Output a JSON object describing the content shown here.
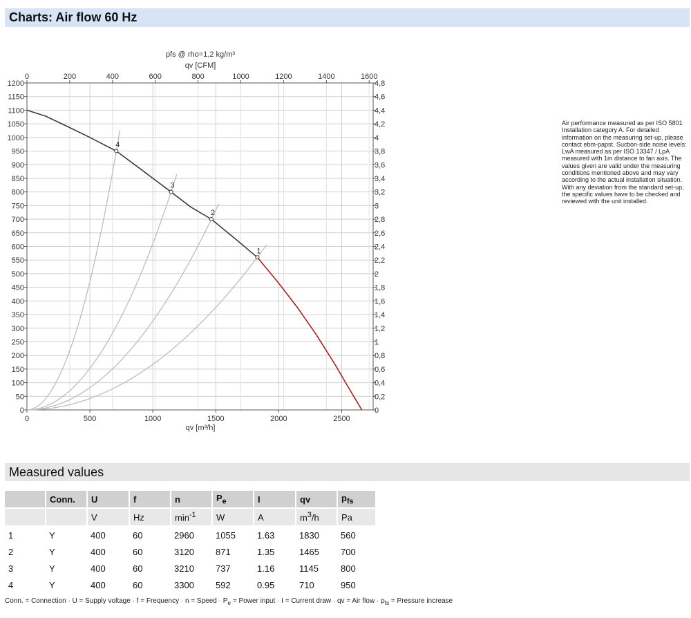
{
  "header": {
    "title": "Charts: Air flow 60 Hz"
  },
  "chart_data": {
    "type": "line",
    "title": "pfs @ rho=1,2 kg/m³",
    "xlabel": "qv [m³/h]",
    "x2label": "qv [CFM]",
    "ylabel": "",
    "xlim": [
      0,
      2750
    ],
    "x2lim": [
      0,
      1618.6
    ],
    "ylim": [
      0,
      1200
    ],
    "y2lim": [
      0,
      4.8
    ],
    "x_ticks": [
      0,
      500,
      1000,
      1500,
      2000,
      2500
    ],
    "x2_ticks": [
      0,
      200,
      400,
      600,
      800,
      1000,
      1200,
      1400,
      1600
    ],
    "y_ticks": [
      0,
      50,
      100,
      150,
      200,
      250,
      300,
      350,
      400,
      450,
      500,
      550,
      600,
      650,
      700,
      750,
      800,
      850,
      900,
      950,
      1000,
      1050,
      1100,
      1150,
      1200
    ],
    "y2_ticks": [
      "0",
      "0,2",
      "0,4",
      "0,6",
      "0,8",
      "1",
      "1,2",
      "1,4",
      "1,6",
      "1,8",
      "2",
      "2,2",
      "2,4",
      "2,6",
      "2,8",
      "3",
      "3,2",
      "3,4",
      "3,6",
      "3,8",
      "4",
      "4,2",
      "4,4",
      "4,6",
      "4,8"
    ],
    "grid": true,
    "series": [
      {
        "color": "#3a3a3a",
        "x": [
          0,
          150,
          300,
          500,
          710,
          900,
          1145,
          1300,
          1465,
          1650,
          1830
        ],
        "y": [
          1100,
          1078,
          1045,
          1000,
          950,
          885,
          800,
          745,
          700,
          630,
          560
        ]
      },
      {
        "color": "#b01c1c",
        "x": [
          1830,
          2000,
          2150,
          2300,
          2450,
          2550,
          2660
        ],
        "y": [
          560,
          465,
          375,
          275,
          165,
          85,
          0
        ]
      }
    ],
    "system_curves": [
      {
        "label": "4",
        "x": 710,
        "y": 950
      },
      {
        "label": "3",
        "x": 1145,
        "y": 800
      },
      {
        "label": "2",
        "x": 1465,
        "y": 700
      },
      {
        "label": "1",
        "x": 1830,
        "y": 560
      }
    ],
    "colors": {
      "fan_curve": "#3a3a3a",
      "overload_curve": "#b01c1c",
      "system_curve": "#bdbdbd",
      "grid": "#cfcfcf"
    }
  },
  "note": "Air performance measured as per ISO 5801 Installation category A. For detailed information on the measuring set-up, please contact ebm-papst. Suction-side noise levels: LwA measured as per ISO 13347 / LpA measured with 1m distance to fan axis. The values given are valid under the measuring conditions mentioned above and may vary according to the actual installation situation. With any deviation from the standard set-up, the specific values have to be checked and reviewed with the unit installed.",
  "measured": {
    "title": "Measured values",
    "headers": [
      "",
      "Conn.",
      "U",
      "f",
      "n",
      "P",
      "I",
      "qv",
      "p"
    ],
    "header_subs": {
      "p_e": "e",
      "p_fs": "fs"
    },
    "units": [
      "",
      "",
      "V",
      "Hz",
      "min",
      "W",
      "A",
      "m",
      "Pa"
    ],
    "unit_sups": {
      "min": "-1",
      "m3": "3"
    },
    "unit_suffix_qv": "/h",
    "rows": [
      [
        "1",
        "Y",
        "400",
        "60",
        "2960",
        "1055",
        "1.63",
        "1830",
        "560"
      ],
      [
        "2",
        "Y",
        "400",
        "60",
        "3120",
        "871",
        "1.35",
        "1465",
        "700"
      ],
      [
        "3",
        "Y",
        "400",
        "60",
        "3210",
        "737",
        "1.16",
        "1145",
        "800"
      ],
      [
        "4",
        "Y",
        "400",
        "60",
        "3300",
        "592",
        "0.95",
        "710",
        "950"
      ]
    ],
    "legend": {
      "a": "Conn. = Connection · U = Supply voltage · f = Frequency · n = Speed · P",
      "a_sub": "e",
      "b": " = Power input · I = Current draw · qv = Air flow · p",
      "b_sub": "fs",
      "c": " = Pressure increase"
    }
  }
}
